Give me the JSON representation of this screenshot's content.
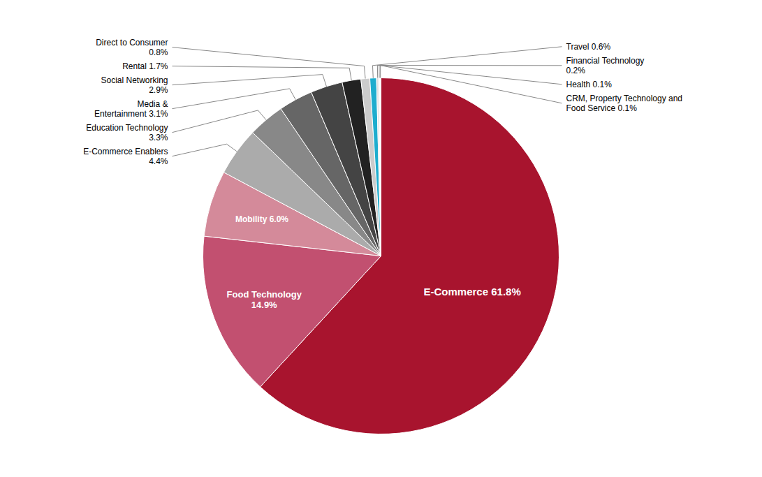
{
  "chart_data": {
    "type": "pie",
    "categories": [
      "E-Commerce",
      "Food Technology",
      "Mobility",
      "E-Commerce Enablers",
      "Education Technology",
      "Media & Entertainment",
      "Social Networking",
      "Rental",
      "Direct to Consumer",
      "Travel",
      "Financial Technology",
      "Health",
      "CRM, Property Technology and\nFood Service"
    ],
    "values": [
      61.8,
      14.9,
      6.0,
      4.4,
      3.3,
      3.1,
      2.9,
      1.7,
      0.8,
      0.6,
      0.2,
      0.1,
      0.1
    ],
    "colors": [
      "#A8142E",
      "#C25070",
      "#D48A9A",
      "#ABABAB",
      "#888888",
      "#666666",
      "#444444",
      "#222222",
      "#CCCCCC",
      "#1EADCE",
      "#E0E0E0",
      "#F0F0F0",
      "#F8F8F8"
    ],
    "value_labels": [
      "E-Commerce 61.8%",
      "Food Technology\n14.9%",
      "Mobility 6.0%",
      "E-Commerce Enablers\n4.4%",
      "Education Technology\n3.3%",
      "Media &\nEntertainment 3.1%",
      "Social Networking\n2.9%",
      "Rental 1.7%",
      "Direct to Consumer\n0.8%",
      "Travel 0.6%",
      "Financial Technology\n0.2%",
      "Health 0.1%",
      "CRM, Property Technology and\nFood Service 0.1%"
    ],
    "data_labels": true
  }
}
